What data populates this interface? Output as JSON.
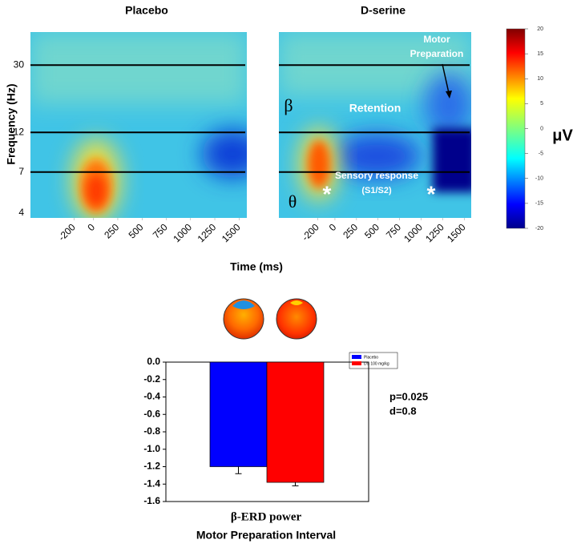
{
  "chart_data": [
    {
      "type": "spectrogram",
      "title": "Placebo",
      "xticks": [
        -200,
        0,
        250,
        500,
        750,
        1000,
        1250,
        1500
      ],
      "xlim": [
        -650,
        1580
      ],
      "yticks": [
        4,
        7,
        12,
        30
      ],
      "ylim": [
        3.75,
        47
      ],
      "log_scale": true
    },
    {
      "type": "spectrogram",
      "title": "D-serine",
      "xticks": [
        -200,
        0,
        250,
        500,
        750,
        1000,
        1250,
        1500
      ],
      "xlim": [
        -650,
        1580
      ],
      "yticks": [
        4,
        7,
        12,
        30
      ],
      "ylim": [
        3.75,
        47
      ],
      "log_scale": true,
      "annotations": [
        "Motor",
        "Preparation",
        "Retention",
        "Sensory response",
        "(S1/S2)",
        "β",
        "θ",
        "*",
        "*"
      ]
    },
    {
      "type": "bar",
      "xlabel": "β-ERD power",
      "subtitle": "Motor Preparation Interval",
      "series": [
        {
          "name": "Placebo",
          "color": "#0000ff",
          "values": [
            -1.2
          ],
          "errors": [
            0.08
          ]
        },
        {
          "name": "DS 100 mg/kg",
          "color": "#ff0000",
          "values": [
            -1.38
          ],
          "errors": [
            0.04
          ]
        }
      ],
      "ylim": [
        -1.6,
        0
      ],
      "yticks": [
        {
          "value": 0,
          "label": "0.0"
        },
        -0.2,
        -0.4,
        -0.6,
        -0.8,
        {
          "value": -1,
          "label": "-1.0"
        },
        -1.2,
        -1.4,
        -1.6
      ],
      "legend": "upper right",
      "annotations": [
        "p=0.025",
        "d=0.8"
      ]
    }
  ],
  "shared": {
    "ylabel": "Frequency (Hz)",
    "xlabel": "Time (ms)",
    "colorbar": {
      "label": "μV",
      "lim": [
        -20,
        20
      ],
      "ticks": [
        20,
        15,
        10,
        5,
        0,
        -5,
        -10,
        -15,
        -20
      ]
    }
  }
}
